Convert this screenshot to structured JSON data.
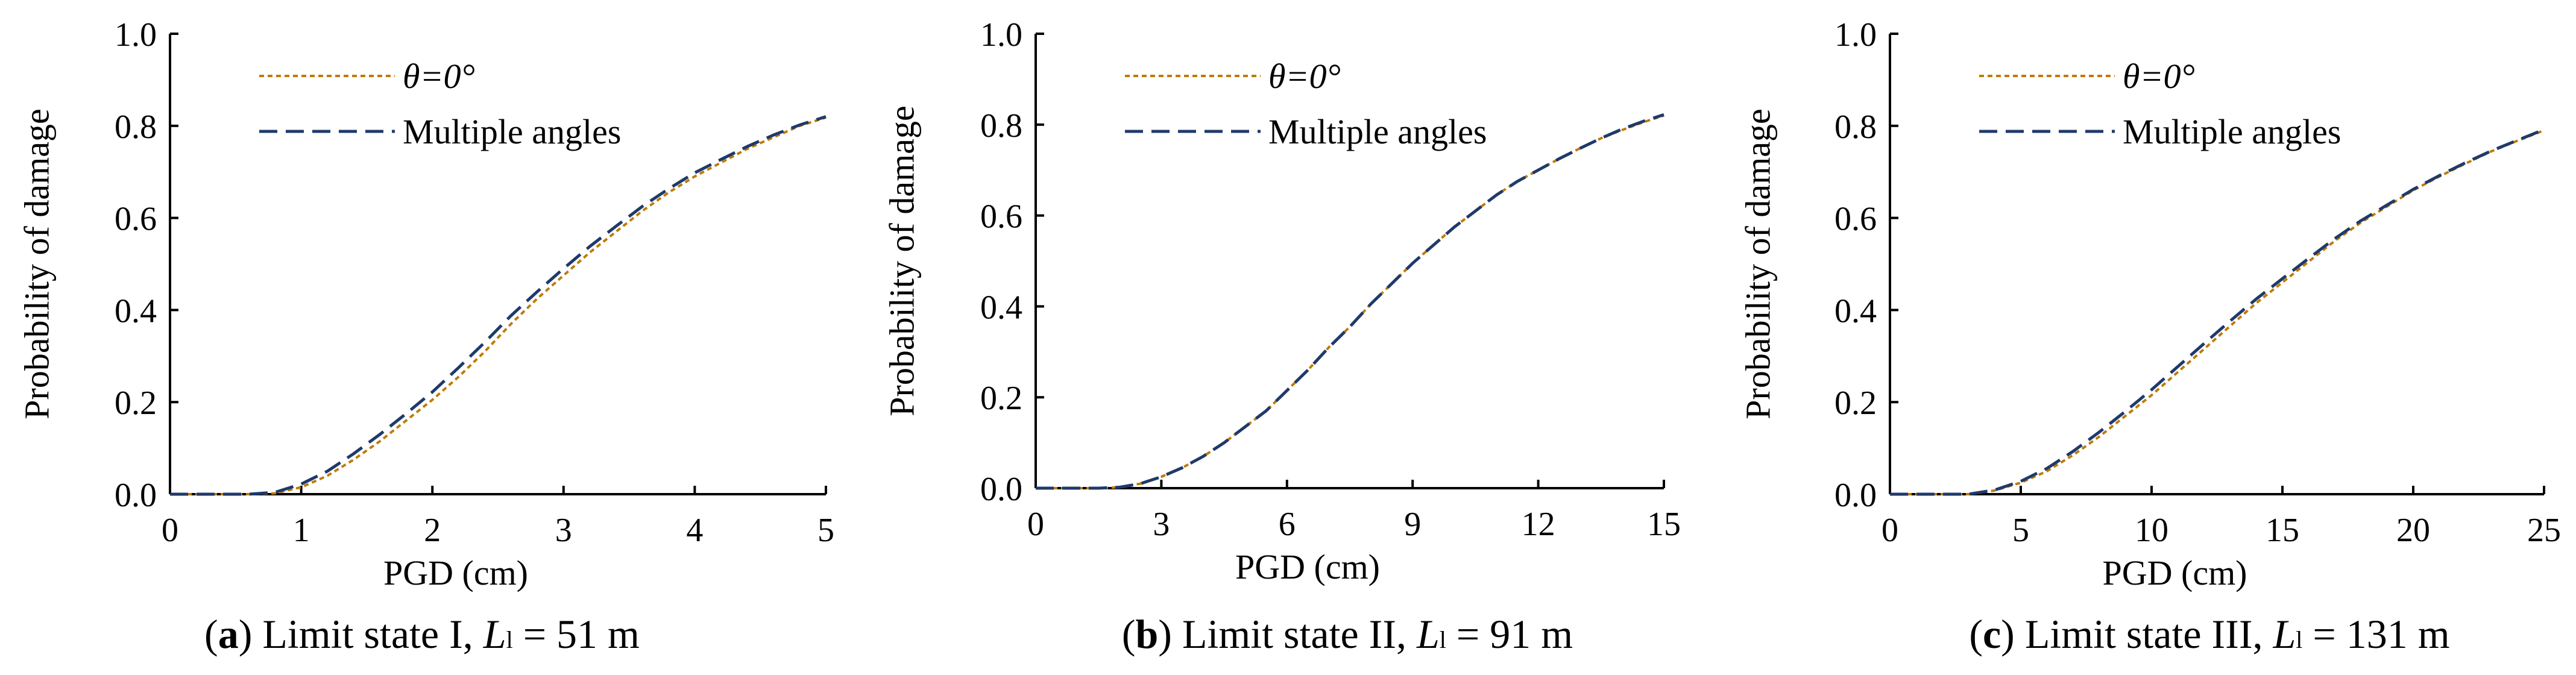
{
  "chart_data": [
    {
      "type": "line",
      "panel_label": "a",
      "caption": {
        "open": "(",
        "label": "a",
        "close": ")",
        "text": " Limit state I, ",
        "var": "L",
        "sub": "l",
        "rest": " = 51 m"
      },
      "xlabel": "PGD (cm)",
      "ylabel": "Probability of damage",
      "xlim": [
        0,
        5
      ],
      "ylim": [
        0,
        1.0
      ],
      "xticks": [
        "0",
        "1",
        "2",
        "3",
        "4",
        "5"
      ],
      "yticks": [
        "0.0",
        "0.2",
        "0.4",
        "0.6",
        "0.8",
        "1.0"
      ],
      "legend_position": "top-left",
      "x": [
        0,
        0.4,
        0.6,
        0.8,
        1.0,
        1.2,
        1.4,
        1.6,
        1.8,
        2.0,
        2.2,
        2.4,
        2.6,
        2.8,
        3.0,
        3.2,
        3.4,
        3.6,
        3.8,
        4.0,
        4.2,
        4.4,
        4.6,
        4.8,
        5.0
      ],
      "series": [
        {
          "name": "θ=0°",
          "color": "#C07A00",
          "dash": "dotted",
          "values": [
            0,
            0,
            0,
            0.002,
            0.015,
            0.04,
            0.075,
            0.115,
            0.16,
            0.205,
            0.255,
            0.31,
            0.37,
            0.425,
            0.475,
            0.525,
            0.57,
            0.615,
            0.655,
            0.69,
            0.72,
            0.75,
            0.775,
            0.8,
            0.818
          ]
        },
        {
          "name": "Multiple angles",
          "color": "#1F3A6B",
          "dash": "dashed",
          "values": [
            0,
            0,
            0,
            0.004,
            0.022,
            0.05,
            0.088,
            0.13,
            0.175,
            0.222,
            0.275,
            0.33,
            0.388,
            0.44,
            0.49,
            0.538,
            0.582,
            0.625,
            0.663,
            0.698,
            0.727,
            0.755,
            0.78,
            0.802,
            0.82
          ]
        }
      ]
    },
    {
      "type": "line",
      "panel_label": "b",
      "caption": {
        "open": "(",
        "label": "b",
        "close": ")",
        "text": " Limit state II, ",
        "var": "L",
        "sub": "l",
        "rest": " = 91 m"
      },
      "xlabel": "PGD (cm)",
      "ylabel": "Probability of damage",
      "xlim": [
        0,
        15
      ],
      "ylim": [
        0,
        1.0
      ],
      "xticks": [
        "0",
        "3",
        "6",
        "9",
        "12",
        "15"
      ],
      "yticks": [
        "0.0",
        "0.2",
        "0.4",
        "0.6",
        "0.8",
        "1.0"
      ],
      "legend_position": "top-left",
      "x": [
        0,
        1.5,
        2.0,
        2.5,
        3.0,
        3.5,
        4.0,
        4.5,
        5.0,
        5.5,
        6.0,
        6.5,
        7.0,
        7.5,
        8.0,
        8.5,
        9.0,
        9.5,
        10.0,
        10.5,
        11.0,
        11.5,
        12.0,
        12.5,
        13.0,
        13.5,
        14.0,
        14.5,
        15.0
      ],
      "series": [
        {
          "name": "θ=0°",
          "color": "#C07A00",
          "dash": "dotted",
          "values": [
            0,
            0,
            0.002,
            0.01,
            0.025,
            0.045,
            0.07,
            0.1,
            0.135,
            0.17,
            0.215,
            0.26,
            0.31,
            0.355,
            0.405,
            0.45,
            0.495,
            0.535,
            0.575,
            0.61,
            0.645,
            0.675,
            0.7,
            0.725,
            0.748,
            0.77,
            0.788,
            0.805,
            0.82
          ]
        },
        {
          "name": "Multiple angles",
          "color": "#1F3A6B",
          "dash": "dashed",
          "values": [
            0,
            0,
            0.002,
            0.01,
            0.025,
            0.045,
            0.07,
            0.1,
            0.135,
            0.17,
            0.215,
            0.26,
            0.31,
            0.355,
            0.405,
            0.45,
            0.495,
            0.535,
            0.575,
            0.61,
            0.645,
            0.675,
            0.7,
            0.725,
            0.748,
            0.77,
            0.79,
            0.807,
            0.822
          ]
        }
      ]
    },
    {
      "type": "line",
      "panel_label": "c",
      "caption": {
        "open": "(",
        "label": "c",
        "close": ")",
        "text": " Limit state III, ",
        "var": "L",
        "sub": "l",
        "rest": " = 131 m"
      },
      "xlabel": "PGD (cm)",
      "ylabel": "Probability of damage",
      "xlim": [
        0,
        25
      ],
      "ylim": [
        0,
        1.0
      ],
      "xticks": [
        "0",
        "5",
        "10",
        "15",
        "20",
        "25"
      ],
      "yticks": [
        "0.0",
        "0.2",
        "0.4",
        "0.6",
        "0.8",
        "1.0"
      ],
      "legend_position": "top-left",
      "x": [
        0,
        2.5,
        3.0,
        4.0,
        5.0,
        6.0,
        7.0,
        8.0,
        9.0,
        10.0,
        11.0,
        12.0,
        13.0,
        14.0,
        15.0,
        16.0,
        17.0,
        18.0,
        19.0,
        20.0,
        21.0,
        22.0,
        23.0,
        24.0,
        25.0
      ],
      "series": [
        {
          "name": "θ=0°",
          "color": "#C07A00",
          "dash": "dotted",
          "values": [
            0,
            0,
            0,
            0.008,
            0.025,
            0.05,
            0.085,
            0.125,
            0.17,
            0.215,
            0.265,
            0.315,
            0.365,
            0.415,
            0.46,
            0.505,
            0.55,
            0.59,
            0.625,
            0.66,
            0.69,
            0.718,
            0.745,
            0.768,
            0.79
          ]
        },
        {
          "name": "Multiple angles",
          "color": "#1F3A6B",
          "dash": "dashed",
          "values": [
            0,
            0,
            0,
            0.009,
            0.028,
            0.056,
            0.093,
            0.135,
            0.18,
            0.227,
            0.277,
            0.327,
            0.376,
            0.424,
            0.468,
            0.512,
            0.555,
            0.594,
            0.628,
            0.662,
            0.692,
            0.72,
            0.746,
            0.769,
            0.792
          ]
        }
      ]
    }
  ]
}
